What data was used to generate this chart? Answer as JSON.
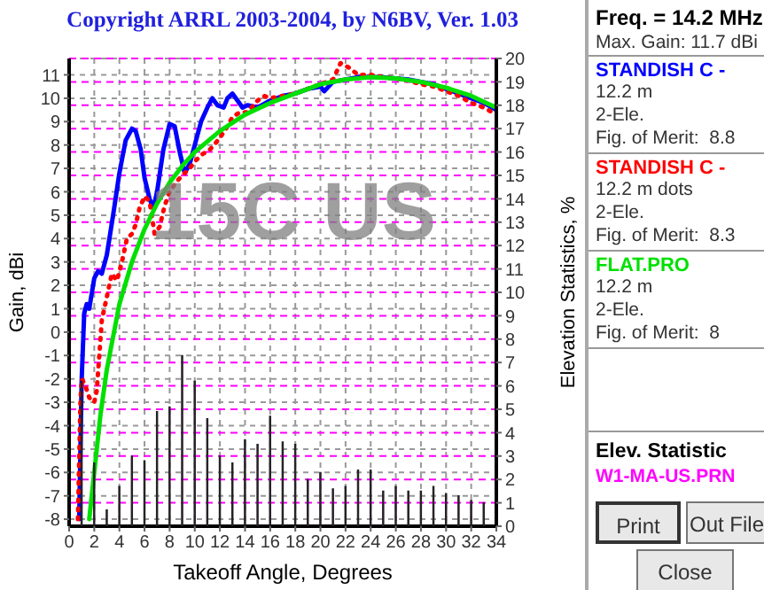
{
  "chart_data": {
    "type": "line",
    "title": "Copyright ARRL 2003-2004, by N6BV, Ver. 1.03",
    "xlabel": "Takeoff Angle, Degrees",
    "ylabel": "Gain, dBi",
    "y2label": "Elevation Statistics, %",
    "xlim": [
      0,
      34
    ],
    "xticks": [
      0,
      2,
      4,
      6,
      8,
      10,
      12,
      14,
      16,
      18,
      20,
      22,
      24,
      26,
      28,
      30,
      32,
      34
    ],
    "ylim": [
      -8.3,
      11.7
    ],
    "yticks": [
      -8,
      -7,
      -6,
      -5,
      -4,
      -3,
      -2,
      -1,
      0,
      1,
      2,
      3,
      4,
      5,
      6,
      7,
      8,
      9,
      10,
      11
    ],
    "y2lim": [
      0,
      20
    ],
    "y2ticks": [
      0,
      1,
      2,
      3,
      4,
      5,
      6,
      7,
      8,
      9,
      10,
      11,
      12,
      13,
      14,
      15,
      16,
      17,
      18,
      19,
      20
    ],
    "grid": true,
    "legend": "right",
    "marker": "none",
    "series": [
      {
        "name": "STANDISH C -",
        "color": "#0000ff",
        "line_style": "solid",
        "x": [
          0.8,
          1.0,
          1.2,
          1.4,
          1.6,
          2,
          2.3,
          2.6,
          3,
          3.5,
          4,
          4.5,
          5,
          5.3,
          5.7,
          6,
          6.4,
          6.7,
          7,
          7.5,
          8,
          8.4,
          8.8,
          9.2,
          9.6,
          10,
          10.5,
          11,
          11.4,
          11.8,
          12.3,
          12.6,
          13,
          13.4,
          13.8,
          14.2,
          15,
          16,
          17,
          18,
          19,
          20,
          20.3,
          21,
          22,
          23,
          24,
          25,
          26,
          27,
          28,
          29,
          30,
          31,
          32,
          33,
          34
        ],
        "values": [
          -8,
          -2,
          0.8,
          1.2,
          1.0,
          2.3,
          2.6,
          2.5,
          3.3,
          5,
          6.8,
          8.2,
          8.7,
          8.6,
          7.8,
          6.6,
          5.7,
          5.3,
          6,
          7.8,
          8.9,
          8.8,
          7.7,
          6.8,
          7.2,
          8,
          9,
          9.6,
          10,
          9.7,
          9.6,
          10,
          10.2,
          9.9,
          9.6,
          9.7,
          9.6,
          9.9,
          10.1,
          10.2,
          10.4,
          10.5,
          10.3,
          10.7,
          10.8,
          10.9,
          10.9,
          10.9,
          10.85,
          10.8,
          10.7,
          10.6,
          10.4,
          10.2,
          10.0,
          9.8,
          9.5
        ]
      },
      {
        "name": "STANDISH C -",
        "color": "#ff0000",
        "line_style": "dotted",
        "x": [
          0.7,
          0.9,
          1,
          1.3,
          1.6,
          2,
          2.2,
          2.4,
          2.6,
          3,
          3.4,
          3.8,
          4.2,
          4.6,
          5,
          5.3,
          5.6,
          6,
          6.4,
          6.8,
          7.2,
          7.6,
          8,
          8.5,
          9,
          9.6,
          10,
          10.6,
          11.2,
          12,
          12.6,
          13,
          13.6,
          14.2,
          15,
          15.5,
          16,
          17,
          18,
          19,
          20,
          21,
          21.6,
          22.3,
          23,
          24,
          25,
          26,
          27,
          28,
          29,
          30,
          31,
          32,
          33,
          34
        ],
        "values": [
          -8,
          -3,
          -2,
          -2.3,
          -2.8,
          -3,
          -2.5,
          -1,
          0.5,
          1.5,
          2.5,
          2.2,
          3,
          4,
          4.2,
          4.6,
          5.3,
          5.8,
          5.6,
          4.2,
          4.5,
          5.4,
          6,
          6.4,
          6.7,
          7,
          7.3,
          7.6,
          7.8,
          8.3,
          8.8,
          9.2,
          9.4,
          9.4,
          9.9,
          10.1,
          10,
          10.1,
          10.2,
          10.4,
          10.6,
          10.8,
          11.5,
          11.3,
          11.0,
          11.0,
          10.9,
          10.85,
          10.75,
          10.6,
          10.5,
          10.3,
          10.1,
          9.8,
          9.6,
          9.3
        ]
      },
      {
        "name": "FLAT.PRO",
        "color": "#00e000",
        "line_style": "solid",
        "x": [
          1.6,
          2,
          2.5,
          3,
          4,
          5,
          6,
          7,
          8,
          9,
          10,
          12,
          14,
          16,
          18,
          20,
          22,
          24,
          26,
          28,
          30,
          32,
          34
        ],
        "values": [
          -8,
          -6,
          -3.5,
          -1.6,
          1.2,
          3,
          4.4,
          5.5,
          6.4,
          7.1,
          7.7,
          8.6,
          9.3,
          9.8,
          10.2,
          10.6,
          10.8,
          10.9,
          10.85,
          10.7,
          10.45,
          10.1,
          9.6
        ]
      },
      {
        "type": "bar",
        "axis": "y2",
        "color": "#800080",
        "x": [
          1,
          2,
          3,
          4,
          5,
          6,
          7,
          8,
          9,
          10,
          11,
          12,
          13,
          14,
          15,
          16,
          17,
          18,
          19,
          20,
          21,
          22,
          23,
          24,
          25,
          26,
          27,
          28,
          29,
          30,
          31,
          32,
          33
        ],
        "values": [
          6.2,
          2.7,
          0.7,
          1.7,
          3.0,
          2.8,
          4.9,
          5.1,
          7.3,
          6.2,
          4.6,
          3.0,
          2.7,
          3.7,
          3.5,
          4.7,
          3.6,
          3.5,
          2.0,
          2.3,
          1.6,
          1.7,
          2.4,
          2.4,
          1.5,
          1.7,
          1.5,
          1.5,
          1.7,
          1.4,
          1.3,
          1.1,
          1.0
        ]
      }
    ],
    "annotations": [
      "Freq. = 14.2 MHz",
      "Max. Gain: 11.7 dBi",
      "12.2 m",
      "2-Ele.",
      "Fig. of Merit:  8.8",
      "12.2 m dots",
      "2-Ele.",
      "Fig. of Merit:  8.3",
      "12.2 m",
      "2-Ele.",
      "Fig. of Merit:  8",
      "Elev. Statistic",
      "W1-MA-US.PRN",
      "Print",
      "Out File",
      "Close",
      "15C US"
    ]
  }
}
